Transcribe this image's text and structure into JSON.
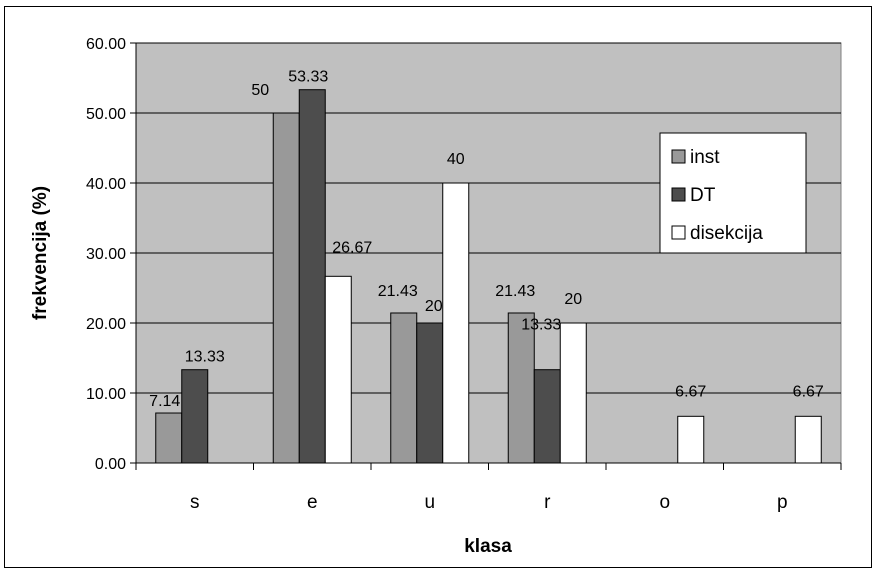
{
  "chart_data": {
    "type": "bar",
    "xlabel": "klasa",
    "ylabel": "frekvencija (%)",
    "ylim": [
      0,
      60
    ],
    "yticks": [
      "0.00",
      "10.00",
      "20.00",
      "30.00",
      "40.00",
      "50.00",
      "60.00"
    ],
    "categories": [
      "s",
      "e",
      "u",
      "r",
      "o",
      "p"
    ],
    "series": [
      {
        "name": "inst",
        "color": "#999999",
        "values": [
          7.14,
          50,
          21.43,
          21.43,
          null,
          null
        ],
        "labels": [
          "7.14",
          "50",
          "21.43",
          "21.43",
          "",
          ""
        ]
      },
      {
        "name": "DT",
        "color": "#4d4d4d",
        "values": [
          13.33,
          53.33,
          20,
          13.33,
          null,
          null
        ],
        "labels": [
          "13.33",
          "53.33",
          "20",
          "13.33",
          "",
          ""
        ]
      },
      {
        "name": "disekcija",
        "color": "#ffffff",
        "values": [
          null,
          26.67,
          40,
          20,
          6.67,
          6.67
        ],
        "labels": [
          "",
          "26.67",
          "40",
          "20",
          "6.67",
          "6.67"
        ]
      }
    ],
    "grid": true,
    "plot_background": "#c0c0c0",
    "legend_position": "right"
  }
}
